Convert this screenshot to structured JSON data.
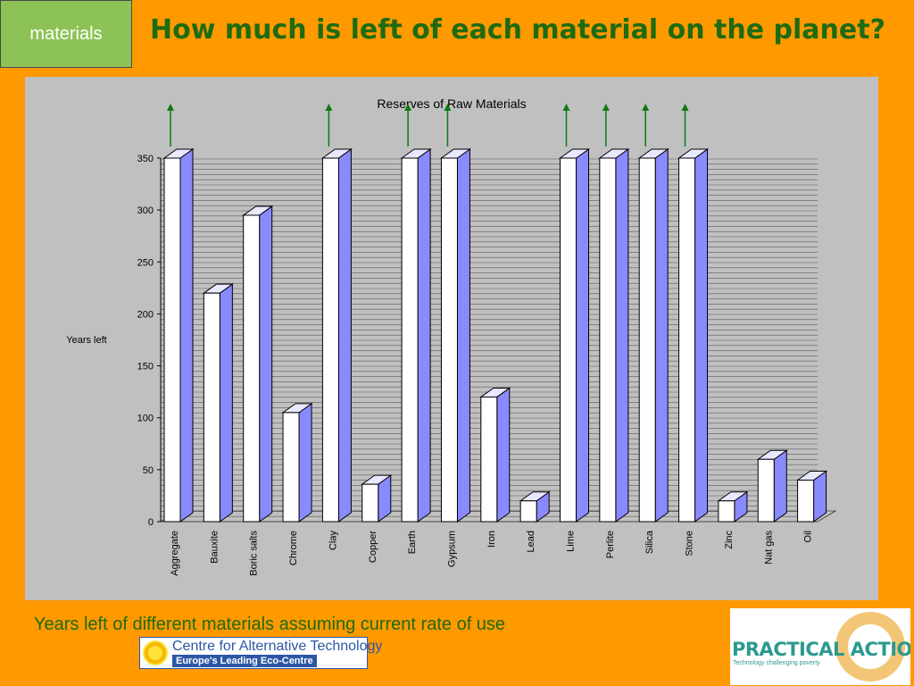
{
  "slide": {
    "tag": "materials",
    "title": "How much is left of each material on the planet?",
    "caption": "Years left of different materials assuming current rate of use"
  },
  "logos": {
    "cat_line1": "Centre for Alternative Technology",
    "cat_line2": "Europe's Leading Eco-Centre",
    "pa_name": "PRACTICAL ACTION",
    "pa_tagline": "Technology challenging poverty"
  },
  "colors": {
    "background": "#FF9900",
    "title": "#1E6B12",
    "bar_front": "#FFFFFF",
    "bar_side": "#8A8AFF",
    "arrow": "#0E7A10",
    "plot_area": "#C0C0C0"
  },
  "chart_data": {
    "type": "bar",
    "style": "3d",
    "title": "Reserves of Raw Materials",
    "xlabel": "",
    "ylabel": "Years left",
    "ylim": [
      0,
      350
    ],
    "yticks": [
      0,
      50,
      100,
      150,
      200,
      250,
      300,
      350
    ],
    "grid": true,
    "categories": [
      "Aggregate",
      "Bauxite",
      "Boric salts",
      "Chrome",
      "Clay",
      "Copper",
      "Earth",
      "Gypsum",
      "Iron",
      "Lead",
      "Lime",
      "Perlite",
      "Silica",
      "Stone",
      "Zinc",
      "Nat gas",
      "Oil"
    ],
    "values": [
      350,
      220,
      295,
      105,
      350,
      36,
      350,
      350,
      120,
      20,
      350,
      350,
      350,
      350,
      20,
      60,
      40
    ],
    "exceeds_axis": [
      true,
      false,
      false,
      false,
      true,
      false,
      true,
      true,
      false,
      false,
      true,
      true,
      true,
      true,
      false,
      false,
      false
    ]
  }
}
